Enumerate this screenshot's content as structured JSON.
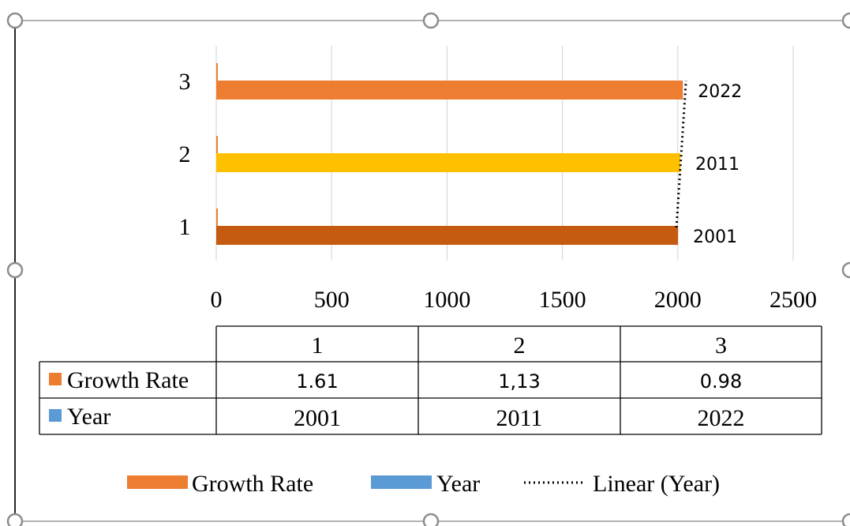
{
  "chart_data": {
    "type": "bar",
    "orientation": "horizontal",
    "categories": [
      "1",
      "2",
      "3"
    ],
    "series": [
      {
        "name": "Growth Rate",
        "values": [
          "1.61",
          "1,13",
          "0.98"
        ],
        "color": "#ED7D31"
      },
      {
        "name": "Year",
        "values": [
          2001,
          2011,
          2022
        ],
        "color": "#5B9BD5"
      }
    ],
    "bar_colors": [
      "#C55A11",
      "#FFC000",
      "#ED7D31"
    ],
    "data_labels": [
      "2001",
      "2011",
      "2022"
    ],
    "trendline": {
      "name": "Linear (Year)",
      "series": "Year",
      "style": "dotted",
      "color": "#000000"
    },
    "x_ticks": [
      "0",
      "500",
      "1000",
      "1500",
      "2000",
      "2500"
    ],
    "xlim": [
      0,
      2500
    ],
    "grid": "vertical",
    "legend": "bottom",
    "legend_items": [
      "Growth Rate",
      "Year",
      "Linear (Year)"
    ],
    "data_table": {
      "header": [
        "1",
        "2",
        "3"
      ],
      "rows": [
        {
          "label": "Growth Rate",
          "key_color": "#ED7D31",
          "values": [
            "1.61",
            "1,13",
            "0.98"
          ]
        },
        {
          "label": "Year",
          "key_color": "#5B9BD5",
          "values": [
            "2001",
            "2011",
            "2022"
          ]
        }
      ]
    }
  },
  "selection_frame": {
    "selected": true,
    "handle_color": "#8C8C8C"
  }
}
